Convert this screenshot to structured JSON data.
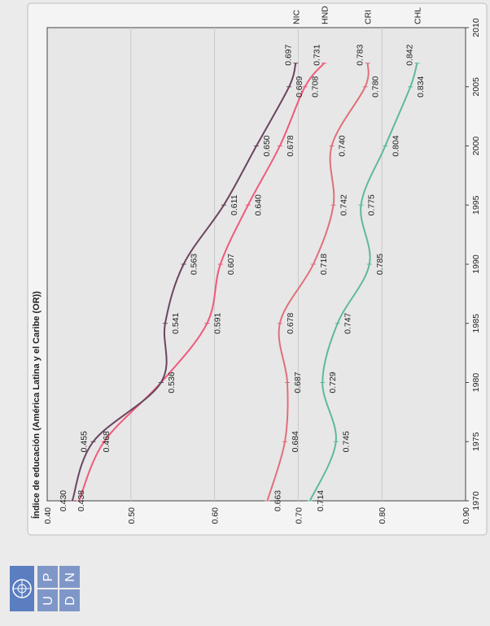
{
  "chart_data": {
    "type": "line",
    "title": "Índice de educación (América Latina y el Caribe (OR))",
    "xlabel": "",
    "ylabel": "",
    "xlim": [
      1970,
      2010
    ],
    "ylim": [
      0.4,
      0.9
    ],
    "x_ticks": [
      "1970",
      "1975",
      "1980",
      "1985",
      "1990",
      "1995",
      "2000",
      "2005",
      "2010"
    ],
    "y_ticks": [
      "0.40",
      "0.50",
      "0.60",
      "0.70",
      "0.80",
      "0.90"
    ],
    "grid": true,
    "series": [
      {
        "name": "CHL",
        "color": "#5fb99a",
        "x": [
          1970,
          1975,
          1980,
          1985,
          1990,
          1995,
          2000,
          2005,
          2007
        ],
        "y": [
          0.714,
          0.745,
          0.729,
          0.747,
          0.785,
          0.775,
          0.804,
          0.834,
          0.842
        ],
        "labels": [
          "0.714",
          "0.745",
          "0.729",
          "0.747",
          "0.785",
          "0.775",
          "0.804",
          "0.834",
          "0.842"
        ]
      },
      {
        "name": "CRI",
        "color": "#e0707a",
        "x": [
          1970,
          1975,
          1980,
          1985,
          1990,
          1995,
          2000,
          2005,
          2007
        ],
        "y": [
          0.663,
          0.684,
          0.687,
          0.678,
          0.718,
          0.742,
          0.74,
          0.78,
          0.783
        ],
        "labels": [
          "0.663",
          "0.684",
          "0.687",
          "0.678",
          "0.718",
          "0.742",
          "0.740",
          "0.780",
          "0.783"
        ]
      },
      {
        "name": "HND",
        "color": "#ef5a7a",
        "x": [
          1970,
          1975,
          1980,
          1985,
          1990,
          1995,
          2000,
          2005,
          2007
        ],
        "y": [
          0.438,
          0.468,
          0.536,
          0.591,
          0.607,
          0.64,
          0.678,
          0.708,
          0.731
        ],
        "labels": [
          "0.438",
          "0.468",
          "0.536",
          "0.591",
          "0.607",
          "0.640",
          "0.678",
          "0.708",
          "0.731"
        ]
      },
      {
        "name": "NIC",
        "color": "#6a4560",
        "x": [
          1970,
          1975,
          1980,
          1985,
          1990,
          1995,
          2000,
          2005,
          2007
        ],
        "y": [
          0.43,
          0.455,
          0.536,
          0.541,
          0.563,
          0.611,
          0.65,
          0.689,
          0.697
        ],
        "labels": [
          "0.430",
          "0.455",
          "",
          "0.541",
          "0.563",
          "0.611",
          "0.650",
          "0.689",
          "0.697"
        ]
      }
    ]
  },
  "logo": {
    "letters": [
      "P",
      "N",
      "U",
      "D"
    ],
    "emblem": "un-emblem-icon"
  }
}
